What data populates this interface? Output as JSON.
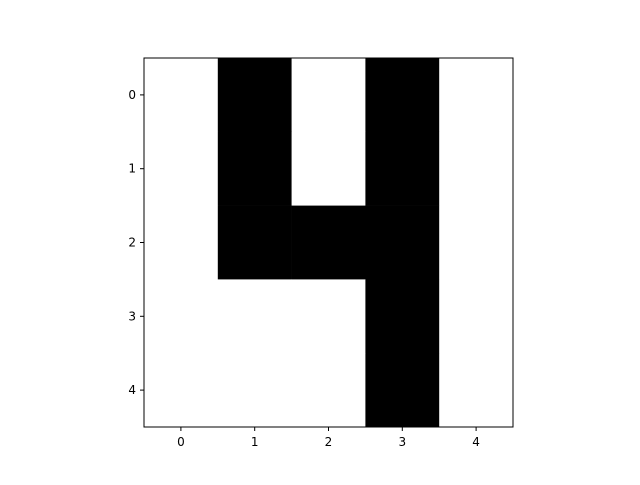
{
  "chart_data": {
    "type": "heatmap",
    "colormap": "binary (1 = black, 0 = white)",
    "colors": {
      "on": "#000000",
      "off": "#ffffff",
      "axis": "#000000"
    },
    "x_ticks": [
      "0",
      "1",
      "2",
      "3",
      "4"
    ],
    "y_ticks": [
      "0",
      "1",
      "2",
      "3",
      "4"
    ],
    "xlim": [
      -0.5,
      4.5
    ],
    "ylim": [
      4.5,
      -0.5
    ],
    "grid": false,
    "matrix": [
      [
        0,
        1,
        0,
        1,
        0
      ],
      [
        0,
        1,
        0,
        1,
        0
      ],
      [
        0,
        1,
        1,
        1,
        0
      ],
      [
        0,
        0,
        0,
        1,
        0
      ],
      [
        0,
        0,
        0,
        1,
        0
      ]
    ]
  }
}
